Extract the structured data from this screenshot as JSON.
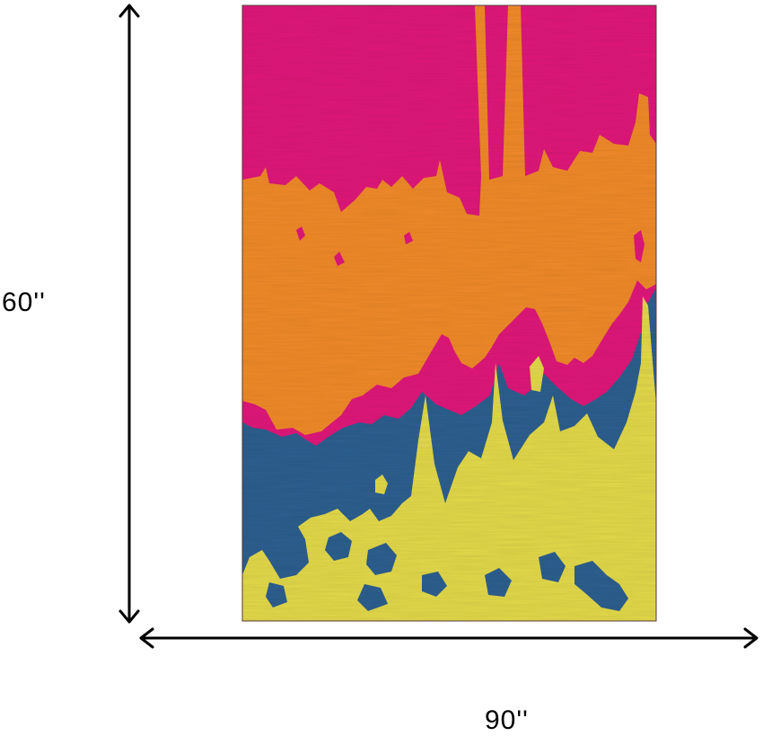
{
  "dimensions": {
    "height_label": "60''",
    "width_label": "90''"
  },
  "rug": {
    "colors": {
      "magenta": "#e0197a",
      "orange": "#f08a2a",
      "blue": "#2e5f8f",
      "yellow": "#e3d94a"
    }
  },
  "arrows": {
    "color": "#000000"
  }
}
